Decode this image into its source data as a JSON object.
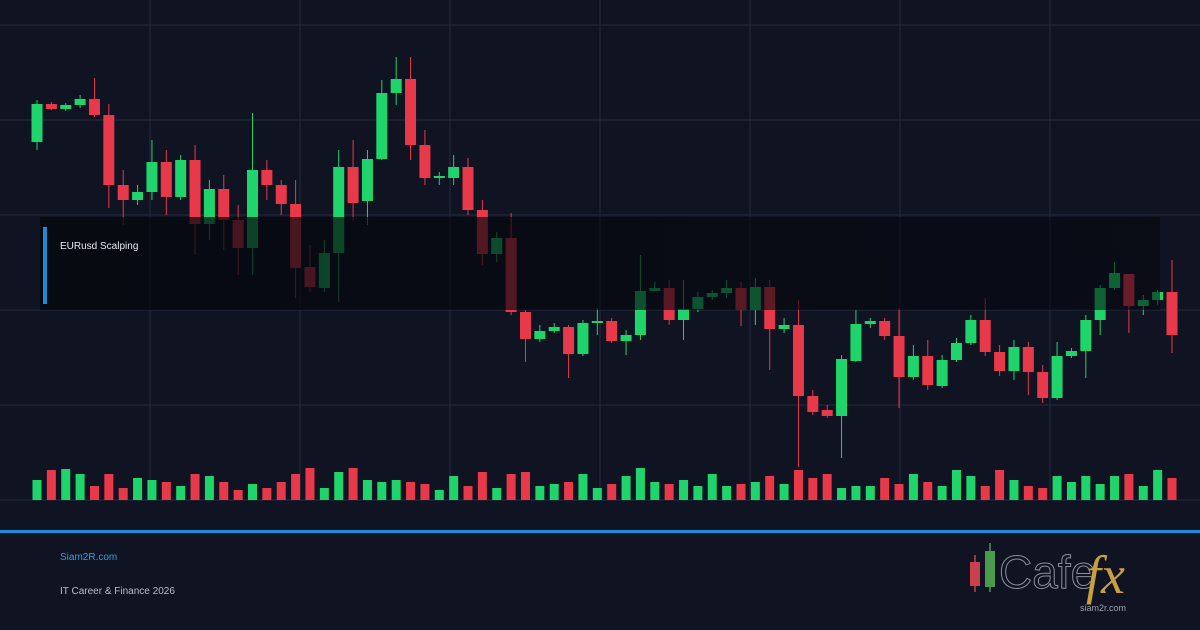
{
  "chart_data": {
    "type": "candlestick",
    "overlay_label": "EURusd Scalping",
    "ylim": [
      0,
      475
    ],
    "vlim": [
      0,
      100
    ],
    "up_color": "#1fd46a",
    "down_color": "#e8394b",
    "open": [
      358,
      396,
      391,
      395,
      401,
      385,
      315,
      300,
      308,
      338,
      303,
      340,
      276,
      311,
      280,
      252,
      330,
      315,
      296,
      233,
      212,
      247,
      333,
      299,
      341,
      407,
      421,
      355,
      322,
      322,
      333,
      290,
      246,
      262,
      188,
      161,
      169,
      173,
      146,
      177,
      179,
      159,
      165,
      209,
      212,
      180,
      191,
      203,
      207,
      212,
      190,
      213,
      171,
      175,
      104,
      90,
      84,
      139,
      176,
      179,
      164,
      123,
      144,
      114,
      140,
      157,
      180,
      148,
      129,
      153,
      128,
      102,
      144,
      149,
      180,
      212,
      226,
      194,
      200,
      208
    ],
    "high": [
      400,
      398,
      397,
      405,
      422,
      396,
      330,
      315,
      360,
      350,
      345,
      355,
      320,
      325,
      295,
      387,
      340,
      320,
      320,
      255,
      260,
      350,
      360,
      350,
      420,
      443,
      443,
      370,
      328,
      345,
      342,
      300,
      268,
      287,
      190,
      175,
      177,
      175,
      180,
      192,
      182,
      170,
      245,
      218,
      220,
      220,
      208,
      210,
      220,
      218,
      222,
      220,
      182,
      200,
      110,
      95,
      145,
      190,
      182,
      182,
      192,
      155,
      160,
      145,
      162,
      185,
      202,
      155,
      160,
      158,
      135,
      158,
      152,
      185,
      215,
      238,
      226,
      205,
      210,
      240
    ],
    "low": [
      350,
      390,
      389,
      392,
      383,
      292,
      275,
      295,
      300,
      285,
      300,
      245,
      260,
      250,
      225,
      225,
      300,
      285,
      202,
      208,
      208,
      198,
      280,
      275,
      340,
      395,
      340,
      315,
      315,
      315,
      285,
      235,
      238,
      185,
      138,
      158,
      167,
      122,
      144,
      165,
      157,
      145,
      160,
      208,
      175,
      160,
      188,
      200,
      202,
      174,
      175,
      130,
      167,
      33,
      85,
      82,
      42,
      138,
      172,
      160,
      92,
      120,
      110,
      112,
      138,
      155,
      144,
      124,
      120,
      105,
      97,
      100,
      142,
      122,
      165,
      210,
      167,
      185,
      195,
      147
    ],
    "close": [
      396,
      391,
      395,
      401,
      385,
      315,
      300,
      308,
      338,
      303,
      340,
      276,
      311,
      280,
      252,
      330,
      315,
      296,
      232,
      213,
      247,
      333,
      297,
      341,
      407,
      421,
      355,
      322,
      324,
      333,
      290,
      246,
      262,
      188,
      161,
      169,
      173,
      146,
      177,
      179,
      159,
      165,
      209,
      212,
      180,
      191,
      203,
      207,
      212,
      190,
      213,
      171,
      175,
      104,
      88,
      84,
      141,
      176,
      179,
      164,
      123,
      144,
      115,
      140,
      157,
      180,
      148,
      129,
      153,
      128,
      102,
      144,
      149,
      180,
      212,
      227,
      194,
      200,
      208,
      165
    ],
    "volume": [
      20,
      30,
      31,
      26,
      14,
      26,
      12,
      22,
      20,
      18,
      14,
      26,
      24,
      18,
      10,
      16,
      12,
      18,
      26,
      32,
      12,
      28,
      32,
      20,
      18,
      20,
      18,
      16,
      10,
      24,
      14,
      28,
      12,
      26,
      28,
      14,
      16,
      18,
      26,
      12,
      16,
      24,
      32,
      18,
      16,
      20,
      14,
      26,
      14,
      16,
      18,
      24,
      16,
      30,
      22,
      26,
      12,
      14,
      14,
      22,
      16,
      26,
      18,
      14,
      30,
      24,
      14,
      30,
      20,
      14,
      12,
      24,
      18,
      24,
      16,
      24,
      26,
      14,
      30,
      22
    ]
  },
  "footer": {
    "site": "Siam2R.com",
    "tagline": "IT Career & Finance 2026"
  },
  "logo": {
    "word": "Cafe",
    "accent": "fx",
    "url": "siam2r.com"
  }
}
